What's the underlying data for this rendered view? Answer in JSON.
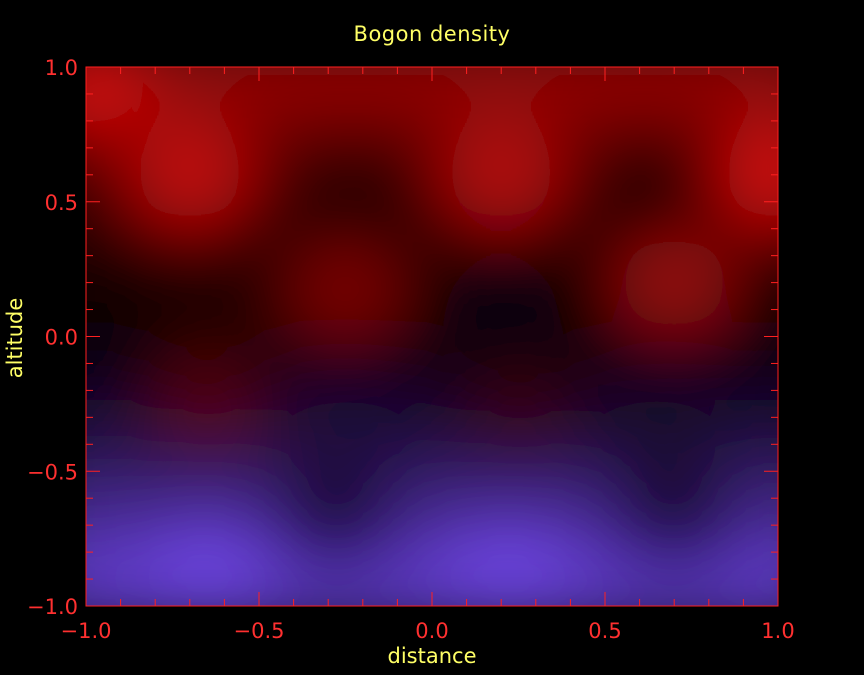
{
  "chart_data": {
    "type": "heatmap",
    "title": "Bogon density",
    "xlabel": "distance",
    "ylabel": "altitude",
    "xlim": [
      -1.0,
      1.0
    ],
    "ylim": [
      -1.0,
      1.0
    ],
    "x_ticks": [
      "−1.0",
      "−0.5",
      "0.0",
      "0.5",
      "1.0"
    ],
    "y_ticks": [
      "−1.0",
      "−0.5",
      "0.0",
      "0.5",
      "1.0"
    ],
    "grid": false,
    "colormap": [
      "#7a4dff",
      "#1a0a30",
      "#000000",
      "#3a0000",
      "#ff1010"
    ],
    "axis_color": "#ff2020",
    "text_color": "#ffff66",
    "background": "#000000",
    "features": [
      {
        "type": "max",
        "x": -0.7,
        "y": 0.6,
        "value": 0.85
      },
      {
        "type": "max",
        "x": 0.2,
        "y": 0.6,
        "value": 0.8
      },
      {
        "type": "max",
        "x": 1.0,
        "y": 0.6,
        "value": 0.9
      },
      {
        "type": "max",
        "x": -1.0,
        "y": 0.95,
        "value": 0.9
      },
      {
        "type": "max",
        "x": 0.7,
        "y": 0.2,
        "value": 0.7
      },
      {
        "type": "max",
        "x": -0.25,
        "y": 0.17,
        "value": 0.6
      },
      {
        "type": "min",
        "x": -0.22,
        "y": 0.57,
        "value": 0.15
      },
      {
        "type": "min",
        "x": 0.65,
        "y": 0.57,
        "value": 0.1
      },
      {
        "type": "min",
        "x": -0.65,
        "y": 0.1,
        "value": 0.2
      },
      {
        "type": "min",
        "x": 0.2,
        "y": 0.1,
        "value": -0.05
      },
      {
        "type": "max",
        "x": -0.65,
        "y": -0.25,
        "value": 0.45
      },
      {
        "type": "max",
        "x": 0.25,
        "y": -0.27,
        "value": 0.35
      },
      {
        "type": "min",
        "x": -0.25,
        "y": -0.4,
        "value": -0.4
      },
      {
        "type": "min",
        "x": 0.65,
        "y": -0.4,
        "value": -0.35
      },
      {
        "type": "min",
        "x": -0.28,
        "y": -0.72,
        "value": -0.2
      },
      {
        "type": "min",
        "x": 0.7,
        "y": -0.72,
        "value": -0.2
      },
      {
        "type": "min",
        "x": -0.65,
        "y": -0.9,
        "value": -0.95
      },
      {
        "type": "min",
        "x": 0.22,
        "y": -0.9,
        "value": -0.95
      }
    ]
  }
}
